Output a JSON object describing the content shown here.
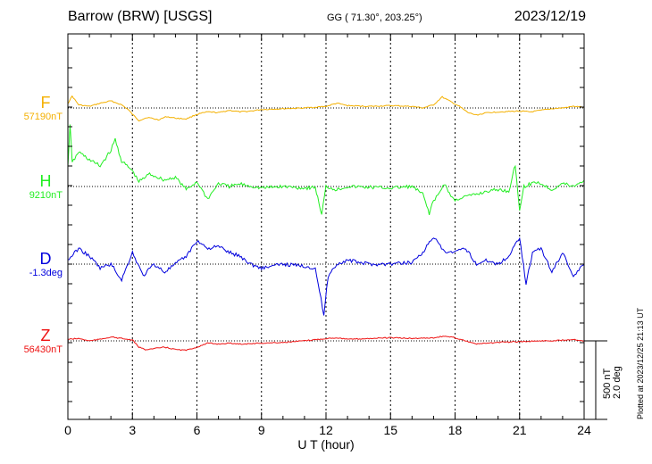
{
  "header": {
    "station": "Barrow (BRW)  [USGS]",
    "coords": "GG ( 71.30°, 203.25°)",
    "date": "2023/12/19"
  },
  "footer": {
    "plotted": "Plotted at 2023/12/25 21:13 UT"
  },
  "scale": {
    "nt": "500 nT",
    "deg": "2.0 deg"
  },
  "chart_data": {
    "type": "line",
    "title": "Barrow (BRW)  [USGS]",
    "xlabel": "U T (hour)",
    "xlim": [
      0,
      24
    ],
    "xticks": [
      0,
      3,
      6,
      9,
      12,
      15,
      18,
      21,
      24
    ],
    "grid": true,
    "series": [
      {
        "name": "F",
        "baseline": "57190nT",
        "color": "#f4b000",
        "points": [
          [
            0,
            30
          ],
          [
            0.2,
            75
          ],
          [
            0.5,
            20
          ],
          [
            1,
            10
          ],
          [
            1.5,
            30
          ],
          [
            2,
            45
          ],
          [
            2.5,
            20
          ],
          [
            2.8,
            -10
          ],
          [
            3,
            -40
          ],
          [
            3.3,
            -80
          ],
          [
            3.7,
            -60
          ],
          [
            4.2,
            -75
          ],
          [
            4.6,
            -55
          ],
          [
            5,
            -65
          ],
          [
            5.5,
            -70
          ],
          [
            6,
            -40
          ],
          [
            6.5,
            -25
          ],
          [
            7,
            -30
          ],
          [
            7.5,
            -15
          ],
          [
            8,
            -25
          ],
          [
            8.5,
            -20
          ],
          [
            9,
            -10
          ],
          [
            10,
            -5
          ],
          [
            11,
            0
          ],
          [
            12,
            10
          ],
          [
            12.5,
            30
          ],
          [
            13,
            15
          ],
          [
            14,
            10
          ],
          [
            15,
            15
          ],
          [
            16,
            10
          ],
          [
            16.5,
            0
          ],
          [
            17,
            20
          ],
          [
            17.4,
            70
          ],
          [
            17.8,
            40
          ],
          [
            18.2,
            10
          ],
          [
            18.6,
            -30
          ],
          [
            19,
            -45
          ],
          [
            19.5,
            -30
          ],
          [
            20,
            -25
          ],
          [
            21,
            -20
          ],
          [
            21.5,
            -25
          ],
          [
            22,
            -15
          ],
          [
            22.5,
            -5
          ],
          [
            23,
            0
          ],
          [
            23.5,
            10
          ],
          [
            24,
            5
          ]
        ]
      },
      {
        "name": "H",
        "baseline": "9210nT",
        "color": "#22ee22",
        "points": [
          [
            0,
            120
          ],
          [
            0.1,
            400
          ],
          [
            0.2,
            150
          ],
          [
            0.5,
            220
          ],
          [
            1,
            170
          ],
          [
            1.5,
            130
          ],
          [
            2,
            230
          ],
          [
            2.2,
            300
          ],
          [
            2.5,
            160
          ],
          [
            3,
            100
          ],
          [
            3.3,
            30
          ],
          [
            3.8,
            80
          ],
          [
            4.5,
            40
          ],
          [
            5,
            60
          ],
          [
            5.5,
            -20
          ],
          [
            6,
            30
          ],
          [
            6.5,
            -80
          ],
          [
            7,
            20
          ],
          [
            7.5,
            0
          ],
          [
            8,
            15
          ],
          [
            9,
            -10
          ],
          [
            10,
            0
          ],
          [
            11,
            -10
          ],
          [
            11.5,
            -5
          ],
          [
            11.8,
            -180
          ],
          [
            12,
            0
          ],
          [
            12.5,
            -20
          ],
          [
            13,
            0
          ],
          [
            14,
            -5
          ],
          [
            15,
            -10
          ],
          [
            16,
            0
          ],
          [
            16.5,
            -50
          ],
          [
            16.8,
            -170
          ],
          [
            17,
            -90
          ],
          [
            17.2,
            -60
          ],
          [
            17.5,
            20
          ],
          [
            17.8,
            -60
          ],
          [
            18,
            -90
          ],
          [
            18.3,
            -70
          ],
          [
            19,
            -50
          ],
          [
            19.5,
            -30
          ],
          [
            20,
            -20
          ],
          [
            20.5,
            -30
          ],
          [
            20.8,
            140
          ],
          [
            21,
            -150
          ],
          [
            21.2,
            0
          ],
          [
            21.8,
            30
          ],
          [
            22.5,
            -20
          ],
          [
            23,
            20
          ],
          [
            23.5,
            0
          ],
          [
            24,
            40
          ]
        ]
      },
      {
        "name": "D",
        "baseline": "-1.3deg",
        "color": "#0000dd",
        "points": [
          [
            0,
            0.1
          ],
          [
            0.5,
            0.4
          ],
          [
            1,
            0.2
          ],
          [
            1.5,
            -0.1
          ],
          [
            2,
            0.0
          ],
          [
            2.5,
            -0.4
          ],
          [
            3,
            0.3
          ],
          [
            3.5,
            -0.3
          ],
          [
            4,
            0.0
          ],
          [
            4.5,
            -0.2
          ],
          [
            5,
            0.0
          ],
          [
            5.5,
            0.2
          ],
          [
            6,
            0.6
          ],
          [
            6.5,
            0.4
          ],
          [
            7,
            0.45
          ],
          [
            7.5,
            0.3
          ],
          [
            8,
            0.2
          ],
          [
            8.5,
            0.0
          ],
          [
            9,
            -0.1
          ],
          [
            10,
            0.0
          ],
          [
            11,
            -0.05
          ],
          [
            11.5,
            -0.1
          ],
          [
            11.9,
            -1.3
          ],
          [
            12.1,
            -0.3
          ],
          [
            12.5,
            0.0
          ],
          [
            13,
            0.1
          ],
          [
            14,
            0.0
          ],
          [
            15,
            0.0
          ],
          [
            16,
            0.05
          ],
          [
            16.5,
            0.3
          ],
          [
            17,
            0.7
          ],
          [
            17.5,
            0.3
          ],
          [
            18,
            0.3
          ],
          [
            18.5,
            0.4
          ],
          [
            19,
            0.0
          ],
          [
            19.5,
            0.1
          ],
          [
            20,
            0.0
          ],
          [
            20.5,
            0.2
          ],
          [
            21,
            0.7
          ],
          [
            21.3,
            -0.5
          ],
          [
            21.6,
            0.3
          ],
          [
            22,
            0.4
          ],
          [
            22.5,
            -0.2
          ],
          [
            23,
            0.3
          ],
          [
            23.5,
            -0.3
          ],
          [
            24,
            0.0
          ]
        ]
      },
      {
        "name": "Z",
        "baseline": "56430nT",
        "color": "#ee1111",
        "points": [
          [
            0,
            10
          ],
          [
            0.5,
            15
          ],
          [
            1,
            0
          ],
          [
            1.5,
            10
          ],
          [
            2,
            25
          ],
          [
            2.5,
            15
          ],
          [
            3,
            5
          ],
          [
            3.3,
            -40
          ],
          [
            3.6,
            -55
          ],
          [
            4,
            -50
          ],
          [
            4.5,
            -40
          ],
          [
            5,
            -55
          ],
          [
            5.5,
            -60
          ],
          [
            6,
            -40
          ],
          [
            6.5,
            -15
          ],
          [
            7,
            -20
          ],
          [
            7.5,
            -15
          ],
          [
            8,
            -20
          ],
          [
            9,
            -15
          ],
          [
            10,
            -10
          ],
          [
            11,
            0
          ],
          [
            12,
            15
          ],
          [
            12.5,
            20
          ],
          [
            13,
            10
          ],
          [
            14,
            15
          ],
          [
            15,
            20
          ],
          [
            16,
            15
          ],
          [
            17,
            20
          ],
          [
            17.5,
            30
          ],
          [
            18,
            20
          ],
          [
            18.5,
            0
          ],
          [
            19,
            -20
          ],
          [
            19.5,
            -15
          ],
          [
            20,
            -10
          ],
          [
            21,
            -5
          ],
          [
            22,
            0
          ],
          [
            22.5,
            0
          ],
          [
            23,
            5
          ],
          [
            23.5,
            10
          ],
          [
            24,
            0
          ]
        ]
      }
    ]
  }
}
